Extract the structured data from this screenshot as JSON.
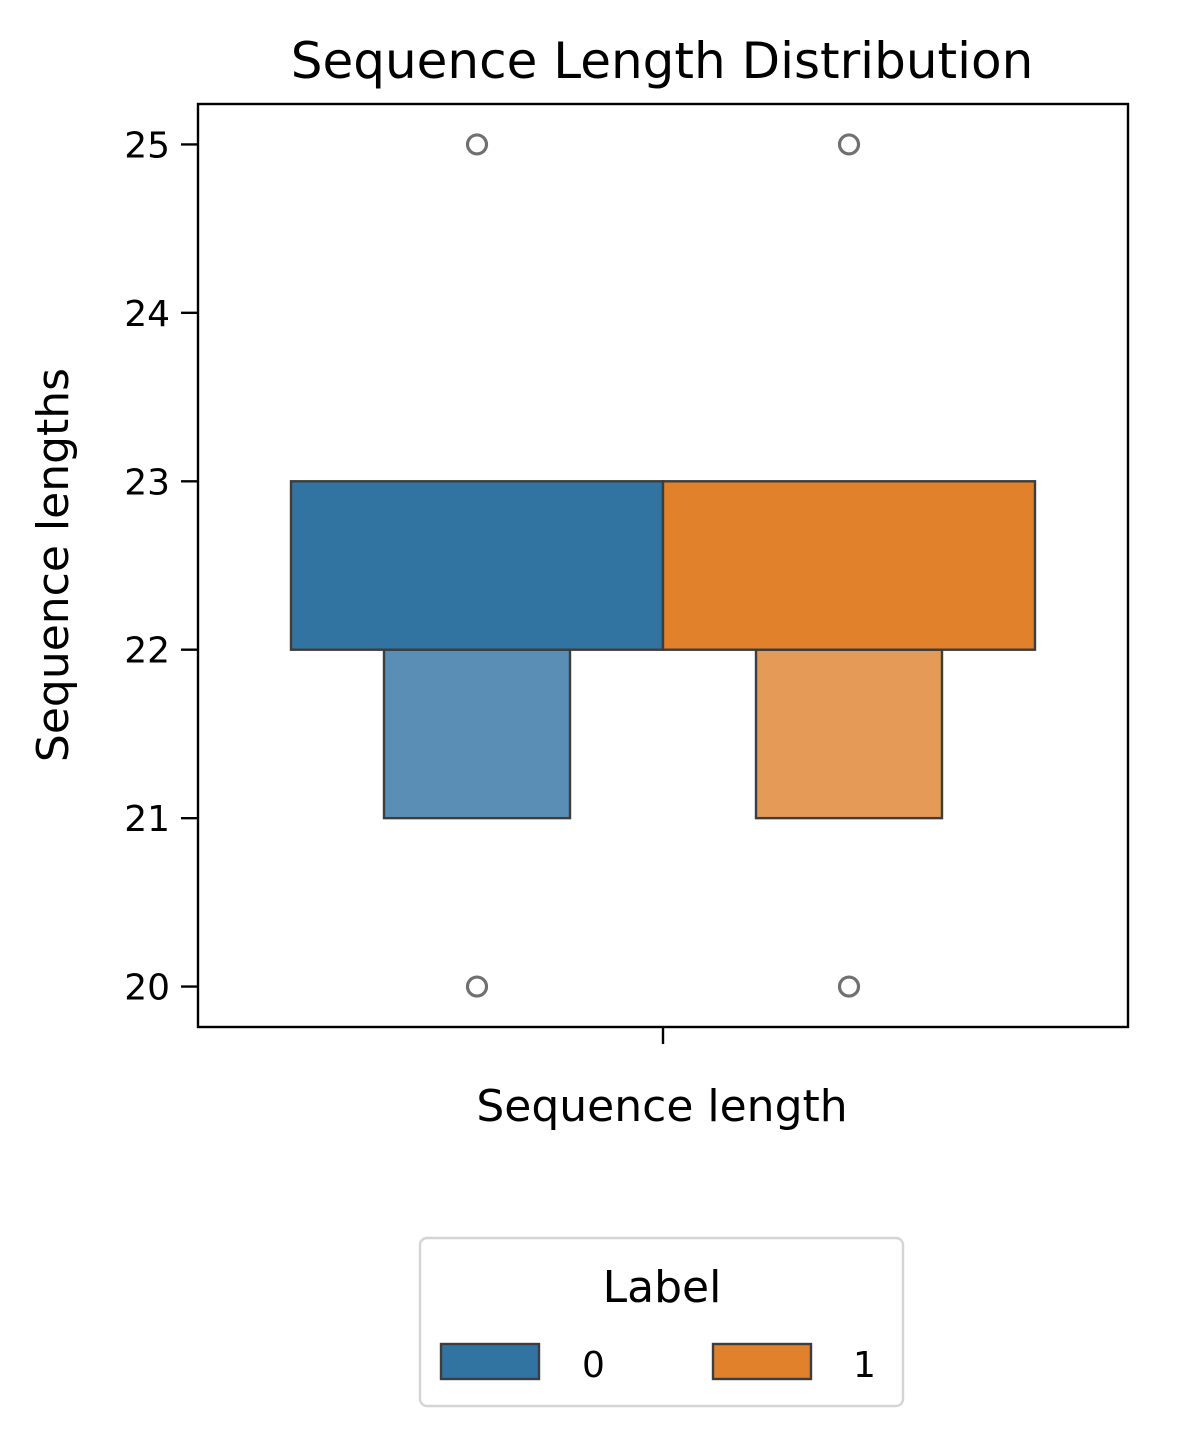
{
  "chart_data": {
    "type": "boxen",
    "title": "Sequence Length Distribution",
    "xlabel": "Sequence length",
    "ylabel": "Sequence lengths",
    "ylim": [
      19.76,
      25.24
    ],
    "yticks": [
      20,
      21,
      22,
      23,
      24,
      25
    ],
    "grid": false,
    "legend": {
      "title": "Label",
      "placement": "bottom-center",
      "entries": [
        "0",
        "1"
      ]
    },
    "series": [
      {
        "name": "0",
        "color": "#3274a1",
        "light_color": "#5a8eb4",
        "boxes": [
          {
            "level": 1,
            "low": 22,
            "high": 23
          },
          {
            "level": 2,
            "low": 21,
            "high": 22
          }
        ],
        "outliers": [
          20,
          25
        ]
      },
      {
        "name": "1",
        "color": "#e1812c",
        "light_color": "#e59a58",
        "boxes": [
          {
            "level": 1,
            "low": 22,
            "high": 23
          },
          {
            "level": 2,
            "low": 21,
            "high": 22
          }
        ],
        "outliers": [
          20,
          25
        ]
      }
    ]
  }
}
